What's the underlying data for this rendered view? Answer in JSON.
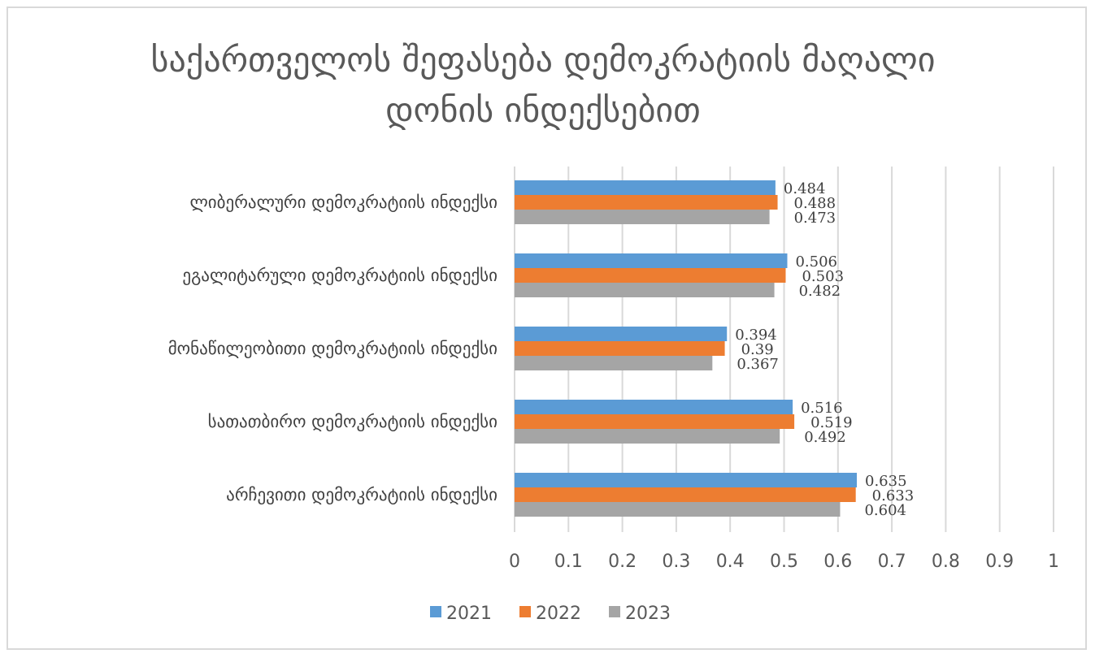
{
  "chart_data": {
    "type": "bar",
    "orientation": "horizontal",
    "title_lines": [
      "საქართველოს შეფასება დემოკრატიის მაღალი",
      "დონის ინდექსებით"
    ],
    "categories": [
      "ლიბერალური დემოკრატიის ინდექსი",
      "ეგალიტარული დემოკრატიის ინდექსი",
      "მონაწილეობითი დემოკრატიის ინდექსი",
      "სათათბირო დემოკრატიის ინდექსი",
      "არჩევითი დემოკრატიის ინდექსი"
    ],
    "series": [
      {
        "name": "2021",
        "color": "#5b9bd5",
        "values": [
          0.484,
          0.506,
          0.394,
          0.516,
          0.635
        ],
        "labels": [
          "0.484",
          "0.506",
          "0.394",
          "0.516",
          "0.635"
        ]
      },
      {
        "name": "2022",
        "color": "#ed7d31",
        "values": [
          0.488,
          0.503,
          0.39,
          0.519,
          0.633
        ],
        "labels": [
          "0.488",
          "0.503",
          "0.39",
          "0.519",
          "0.633"
        ]
      },
      {
        "name": "2023",
        "color": "#a5a5a5",
        "values": [
          0.473,
          0.482,
          0.367,
          0.492,
          0.604
        ],
        "labels": [
          "0.473",
          "0.482",
          "0.367",
          "0.492",
          "0.604"
        ]
      }
    ],
    "xlim": [
      0,
      1
    ],
    "xticks": [
      "0",
      "0.1",
      "0.2",
      "0.3",
      "0.4",
      "0.5",
      "0.6",
      "0.7",
      "0.8",
      "0.9",
      "1"
    ],
    "grid": true,
    "legend_position": "bottom",
    "colors": {
      "grid": "#d9d9d9",
      "border": "#d9d9d9"
    }
  }
}
